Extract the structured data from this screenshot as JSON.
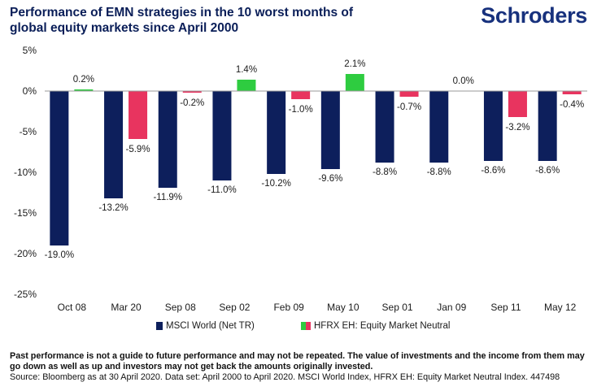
{
  "header": {
    "title_line1": "Performance of EMN strategies in the 10 worst months of",
    "title_line2": "global equity markets since April 2000",
    "logo_text": "Schroders"
  },
  "colors": {
    "title": "#0a1e58",
    "msci": "#0d1f5c",
    "hfrx_positive": "#2ecc40",
    "hfrx_negative": "#e8345f",
    "axis": "#999999"
  },
  "chart_data": {
    "type": "bar",
    "categories": [
      "Oct 08",
      "Mar 20",
      "Sep 08",
      "Sep 02",
      "Feb 09",
      "May 10",
      "Sep 01",
      "Jan 09",
      "Sep 11",
      "May 12"
    ],
    "series": [
      {
        "name": "MSCI World (Net TR)",
        "values": [
          -19.0,
          -13.2,
          -11.9,
          -11.0,
          -10.2,
          -9.6,
          -8.8,
          -8.8,
          -8.6,
          -8.6
        ],
        "labels": [
          "-19.0%",
          "-13.2%",
          "-11.9%",
          "-11.0%",
          "-10.2%",
          "-9.6%",
          "-8.8%",
          "-8.8%",
          "-8.6%",
          "-8.6%"
        ]
      },
      {
        "name": "HFRX EH: Equity Market Neutral",
        "values": [
          0.2,
          -5.9,
          -0.2,
          1.4,
          -1.0,
          2.1,
          -0.7,
          0.0,
          -3.2,
          -0.4
        ],
        "labels": [
          "0.2%",
          "-5.9%",
          "-0.2%",
          "1.4%",
          "-1.0%",
          "2.1%",
          "-0.7%",
          "0.0%",
          "-3.2%",
          "-0.4%"
        ]
      }
    ],
    "ylim": [
      -25,
      5
    ],
    "yticks": [
      5,
      0,
      -5,
      -10,
      -15,
      -20,
      -25
    ],
    "ytick_labels": [
      "5%",
      "0%",
      "-5%",
      "-10%",
      "-15%",
      "-20%",
      "-25%"
    ],
    "grid": false,
    "legend_position": "bottom"
  },
  "footnote": {
    "bold_text": "Past performance is not a guide to future performance and may not be repeated. The value of investments and the income from them may go down as well as up and investors may not get back the amounts originally invested.",
    "source_text": "Source: Bloomberg as at 30 April 2020. Data set: April 2000 to April 2020. MSCI World Index, HFRX EH: Equity Market Neutral Index. 447498"
  }
}
